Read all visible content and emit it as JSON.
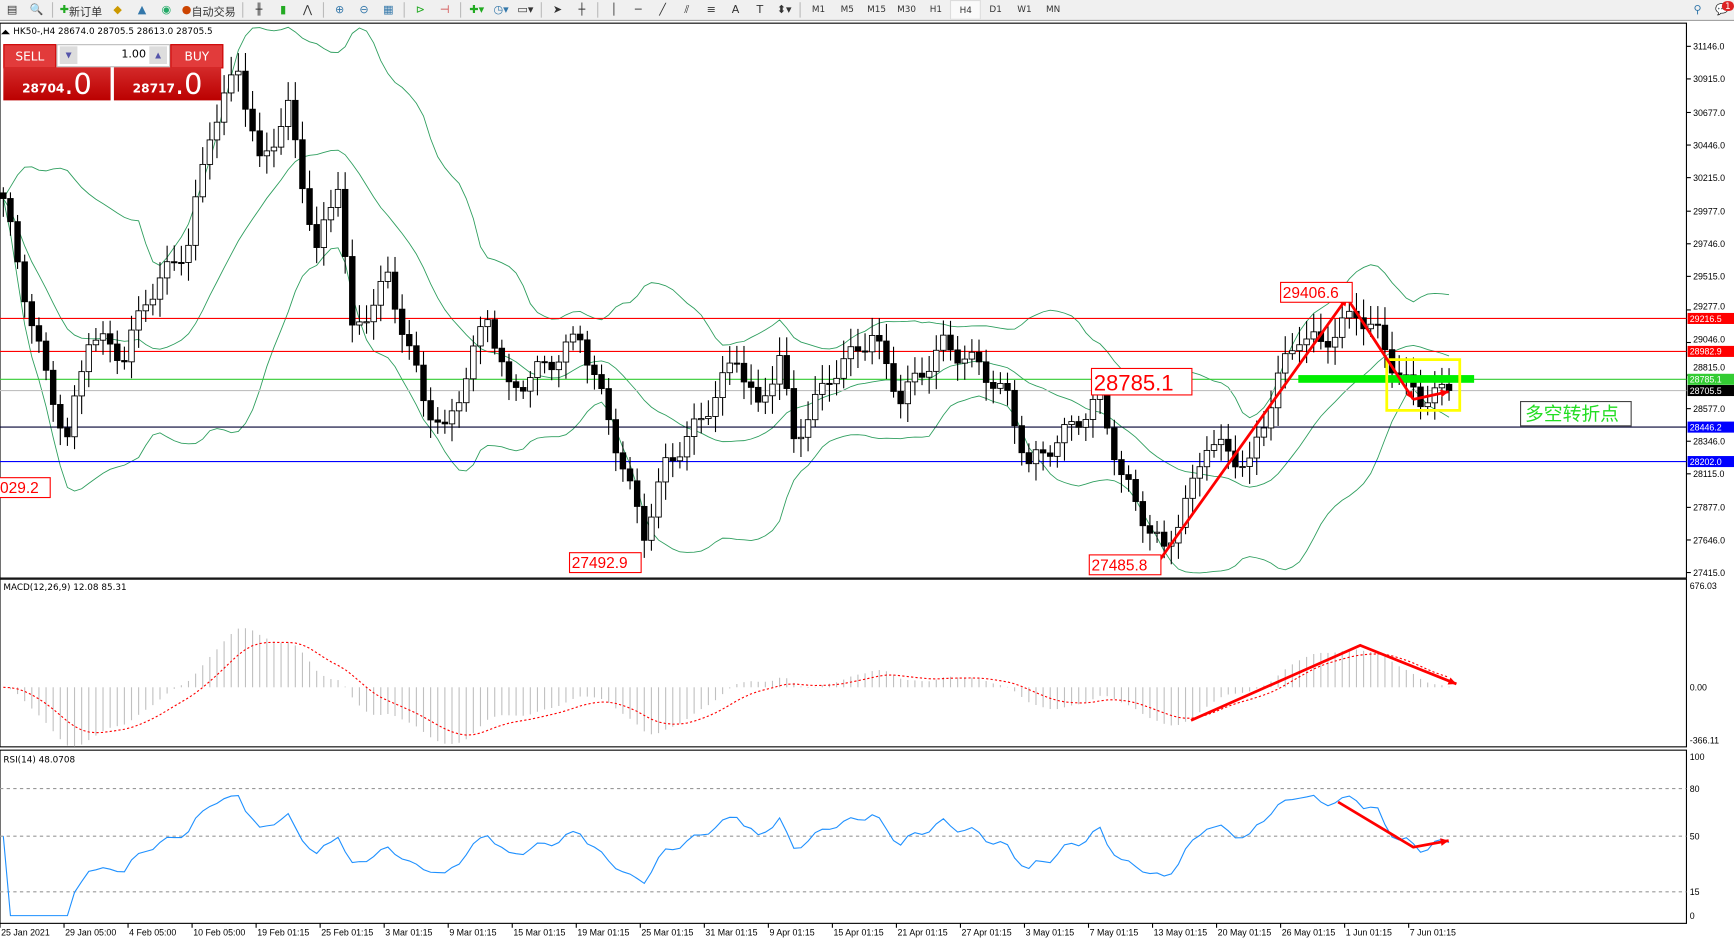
{
  "toolbar": {
    "new_order_label": "新订单",
    "auto_trading_label": "自动交易",
    "text_tool_label": "A",
    "timeframes": [
      "M1",
      "M5",
      "M15",
      "M30",
      "H1",
      "H4",
      "D1",
      "W1",
      "MN"
    ],
    "active_timeframe": "H4",
    "notification_count": "1"
  },
  "chart": {
    "header": "HK50-,H4  28674.0 28705.5 28613.0 28705.5",
    "symbol": "HK50-",
    "timeframe": "H4",
    "ohlc": {
      "open": 28674.0,
      "high": 28705.5,
      "low": 28613.0,
      "close": 28705.5
    },
    "price_axis": [
      "31146.0",
      "30915.0",
      "30677.0",
      "30446.0",
      "30215.0",
      "29977.0",
      "29746.0",
      "29515.0",
      "29277.0",
      "29046.0",
      "28815.0",
      "28577.0",
      "28346.0",
      "28115.0",
      "27877.0",
      "27646.0",
      "27415.0"
    ],
    "price_range": [
      27415.0,
      31146.0
    ],
    "time_axis": [
      "25 Jan 2021",
      "29 Jan 05:00",
      "4 Feb 05:00",
      "10 Feb 05:00",
      "19 Feb 01:15",
      "25 Feb 01:15",
      "3 Mar 01:15",
      "9 Mar 01:15",
      "15 Mar 01:15",
      "19 Mar 01:15",
      "25 Mar 01:15",
      "31 Mar 01:15",
      "9 Apr 01:15",
      "15 Apr 01:15",
      "21 Apr 01:15",
      "27 Apr 01:15",
      "3 May 01:15",
      "7 May 01:15",
      "13 May 01:15",
      "20 May 01:15",
      "26 May 01:15",
      "1 Jun 01:15",
      "7 Jun 01:15"
    ],
    "close_keypoints": [
      [
        0,
        30067
      ],
      [
        2,
        29600
      ],
      [
        6,
        28800
      ],
      [
        9,
        28350
      ],
      [
        12,
        29100
      ],
      [
        17,
        28950
      ],
      [
        20,
        29350
      ],
      [
        26,
        29750
      ],
      [
        29,
        30540
      ],
      [
        33,
        31000
      ],
      [
        36,
        30300
      ],
      [
        40,
        30700
      ],
      [
        44,
        29680
      ],
      [
        47,
        30200
      ],
      [
        49,
        29100
      ],
      [
        54,
        29500
      ],
      [
        59,
        28650
      ],
      [
        62,
        28400
      ],
      [
        68,
        29250
      ],
      [
        71,
        28700
      ],
      [
        78,
        28950
      ],
      [
        81,
        29100
      ],
      [
        85,
        28500
      ],
      [
        88,
        28000
      ],
      [
        90,
        27700
      ],
      [
        93,
        28170
      ],
      [
        98,
        28500
      ],
      [
        103,
        28950
      ],
      [
        106,
        28560
      ],
      [
        109,
        28950
      ],
      [
        111,
        28350
      ],
      [
        116,
        28800
      ],
      [
        122,
        29100
      ],
      [
        126,
        28650
      ],
      [
        132,
        29030
      ],
      [
        137,
        28880
      ],
      [
        141,
        28650
      ],
      [
        144,
        28170
      ],
      [
        149,
        28400
      ],
      [
        154,
        28650
      ],
      [
        157,
        28100
      ],
      [
        161,
        27720
      ],
      [
        163,
        27560
      ],
      [
        167,
        28020
      ],
      [
        169,
        28350
      ],
      [
        175,
        28170
      ],
      [
        179,
        28800
      ],
      [
        182,
        29100
      ],
      [
        185,
        29030
      ],
      [
        190,
        29260
      ],
      [
        193,
        29100
      ],
      [
        196,
        28800
      ],
      [
        199,
        28650
      ],
      [
        203,
        28705.5
      ]
    ],
    "levels": [
      {
        "label": "29216.5",
        "price": 29216.5,
        "color": "#ff0000"
      },
      {
        "label": "28982.9",
        "price": 28982.9,
        "color": "#ff0000"
      },
      {
        "label": "28785.1",
        "price": 28785.1,
        "color": "#33cc33"
      },
      {
        "label": "28705.5",
        "price": 28705.5,
        "color": "#000000",
        "line": "#c0c0c0"
      },
      {
        "label": "28446.2",
        "price": 28446.2,
        "color": "#0000ff",
        "line": "#000033"
      },
      {
        "label": "28202.0",
        "price": 28202.0,
        "color": "#0000ff"
      }
    ],
    "price_labels": [
      "29406.6",
      "28785.1",
      "27492.9",
      "27485.8",
      "029.2"
    ],
    "annotation_text": "多空转折点",
    "colors": {
      "bollinger": "#2e9e5e",
      "up_candle": "#ffffff",
      "down_candle": "#000000",
      "arrow": "#ff0000",
      "highlight_box": "#ffff00",
      "zone_bar": "#00ee00"
    }
  },
  "trade_panel": {
    "sell_label": "SELL",
    "buy_label": "BUY",
    "lot_value": "1.00",
    "sell_price_main": "28704",
    "sell_price_big": ".0",
    "buy_price_main": "28717",
    "buy_price_big": ".0"
  },
  "macd": {
    "title": "MACD(12,26,9) 12.08 85.31",
    "axis": [
      "676.03",
      "0.00",
      "-366.11"
    ],
    "range": [
      -366.11,
      676.03
    ]
  },
  "rsi": {
    "title": "RSI(14) 48.0708",
    "axis": [
      "100",
      "80",
      "50",
      "15",
      "0"
    ],
    "levels": [
      80,
      50,
      15
    ]
  }
}
